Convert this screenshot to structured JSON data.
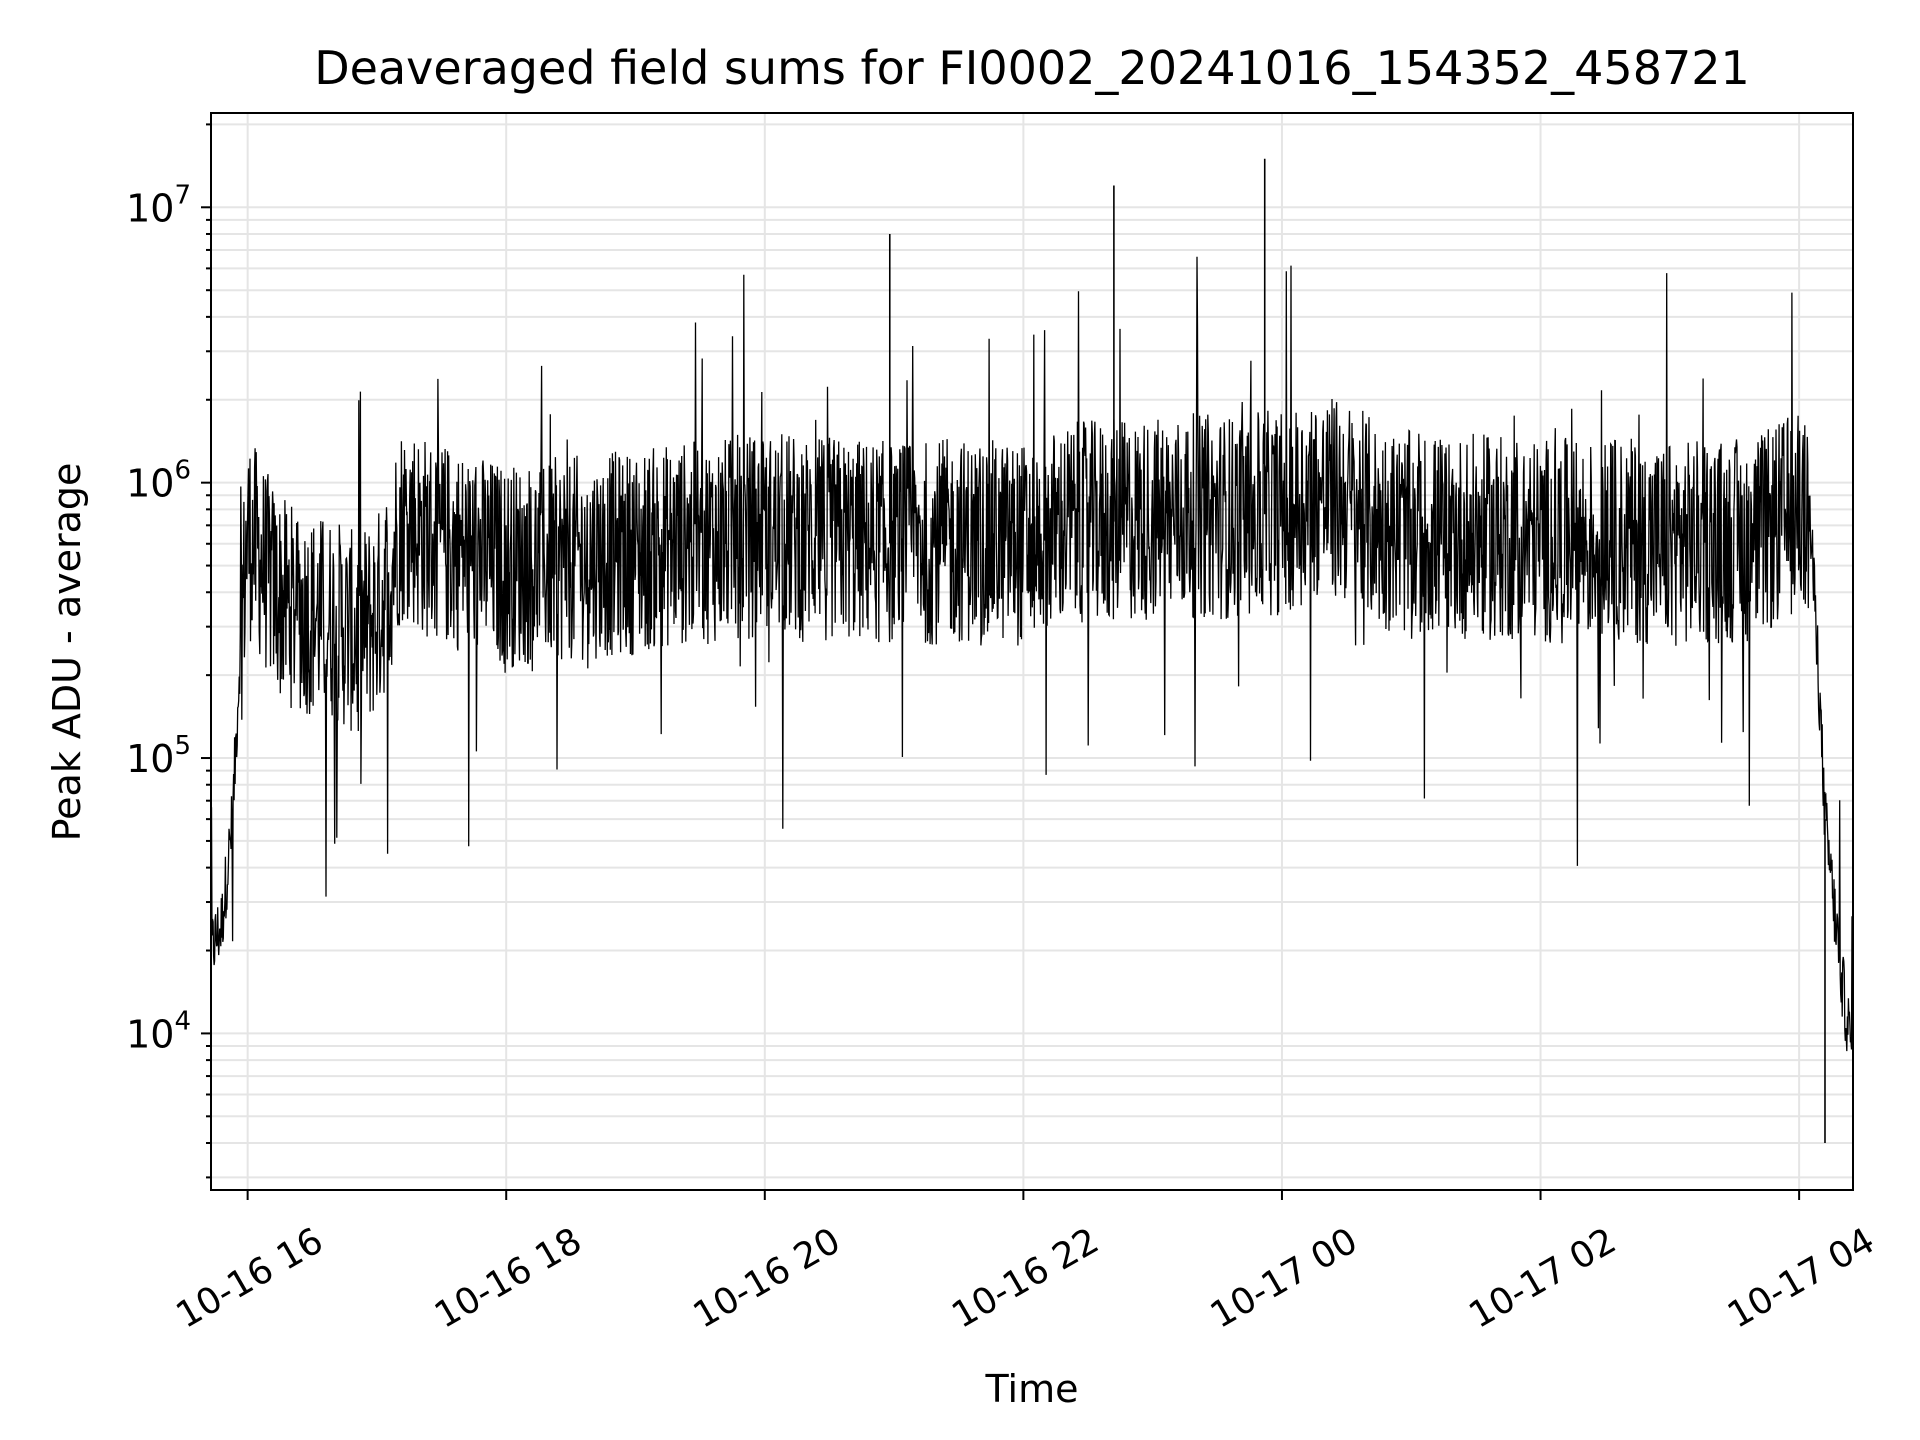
{
  "chart_data": {
    "type": "line",
    "title": "Deaveraged field sums for FI0002_20241016_154352_458721",
    "xlabel": "Time",
    "ylabel": "Peak ADU - average",
    "yscale": "log",
    "grid": true,
    "line_color": "#000000",
    "xlim": [
      "2024-10-16T15:43",
      "2024-10-17T04:25"
    ],
    "ylim": [
      2700,
      22000000
    ],
    "xticks": [
      {
        "t": "2024-10-16T16:00",
        "label": "10-16 16"
      },
      {
        "t": "2024-10-16T18:00",
        "label": "10-16 18"
      },
      {
        "t": "2024-10-16T20:00",
        "label": "10-16 20"
      },
      {
        "t": "2024-10-16T22:00",
        "label": "10-16 22"
      },
      {
        "t": "2024-10-17T00:00",
        "label": "10-17 00"
      },
      {
        "t": "2024-10-17T02:00",
        "label": "10-17 02"
      },
      {
        "t": "2024-10-17T04:00",
        "label": "10-17 04"
      }
    ],
    "yticks": [
      {
        "value": 10000,
        "base": "10",
        "exp": "4"
      },
      {
        "value": 100000,
        "base": "10",
        "exp": "5"
      },
      {
        "value": 1000000,
        "base": "10",
        "exp": "6"
      },
      {
        "value": 10000000,
        "base": "10",
        "exp": "7"
      }
    ],
    "series": [
      {
        "x": [
          "2024-10-16T15:43",
          "2024-10-16T15:48",
          "2024-10-16T15:53",
          "2024-10-16T15:57",
          "2024-10-16T16:00",
          "2024-10-16T16:05",
          "2024-10-16T16:10",
          "2024-10-16T16:15",
          "2024-10-16T16:22",
          "2024-10-16T16:30",
          "2024-10-16T16:40",
          "2024-10-16T16:50",
          "2024-10-16T17:00",
          "2024-10-16T17:06",
          "2024-10-16T17:10",
          "2024-10-16T17:15",
          "2024-10-16T17:20",
          "2024-10-16T17:30",
          "2024-10-16T17:45",
          "2024-10-16T18:00",
          "2024-10-16T18:20",
          "2024-10-16T18:40",
          "2024-10-16T19:00",
          "2024-10-16T19:20",
          "2024-10-16T19:40",
          "2024-10-16T20:00",
          "2024-10-16T20:20",
          "2024-10-16T20:40",
          "2024-10-16T21:00",
          "2024-10-16T21:20",
          "2024-10-16T21:40",
          "2024-10-16T22:00",
          "2024-10-16T22:20",
          "2024-10-16T22:40",
          "2024-10-16T23:00",
          "2024-10-16T23:20",
          "2024-10-16T23:40",
          "2024-10-17T00:00",
          "2024-10-17T00:15",
          "2024-10-17T00:30",
          "2024-10-17T00:45",
          "2024-10-17T01:00",
          "2024-10-17T01:20",
          "2024-10-17T01:40",
          "2024-10-17T02:00",
          "2024-10-17T02:20",
          "2024-10-17T02:40",
          "2024-10-17T03:00",
          "2024-10-17T03:20",
          "2024-10-17T03:40",
          "2024-10-17T03:50",
          "2024-10-17T04:00",
          "2024-10-17T04:05",
          "2024-10-17T04:08",
          "2024-10-17T04:12",
          "2024-10-17T04:16",
          "2024-10-17T04:20",
          "2024-10-17T04:25"
        ],
        "y": [
          20000,
          25000,
          60000,
          300000,
          650000,
          550000,
          450000,
          380000,
          350000,
          330000,
          320000,
          280000,
          330000,
          450000,
          700000,
          750000,
          650000,
          600000,
          550000,
          500000,
          520000,
          540000,
          560000,
          600000,
          620000,
          650000,
          640000,
          620000,
          600000,
          610000,
          620000,
          600000,
          700000,
          720000,
          740000,
          760000,
          750000,
          780000,
          900000,
          850000,
          700000,
          650000,
          640000,
          630000,
          620000,
          610000,
          620000,
          600000,
          610000,
          620000,
          700000,
          800000,
          700000,
          300000,
          60000,
          30000,
          15000,
          8000
        ]
      }
    ],
    "annotations": [
      {
        "kind": "spike",
        "t": "2024-10-16T23:52",
        "value": 15000000
      },
      {
        "kind": "spike",
        "t": "2024-10-16T22:42",
        "value": 12000000
      },
      {
        "kind": "spike",
        "t": "2024-10-16T20:58",
        "value": 8000000
      },
      {
        "kind": "dip",
        "t": "2024-10-17T04:12",
        "value": 4000
      }
    ]
  }
}
